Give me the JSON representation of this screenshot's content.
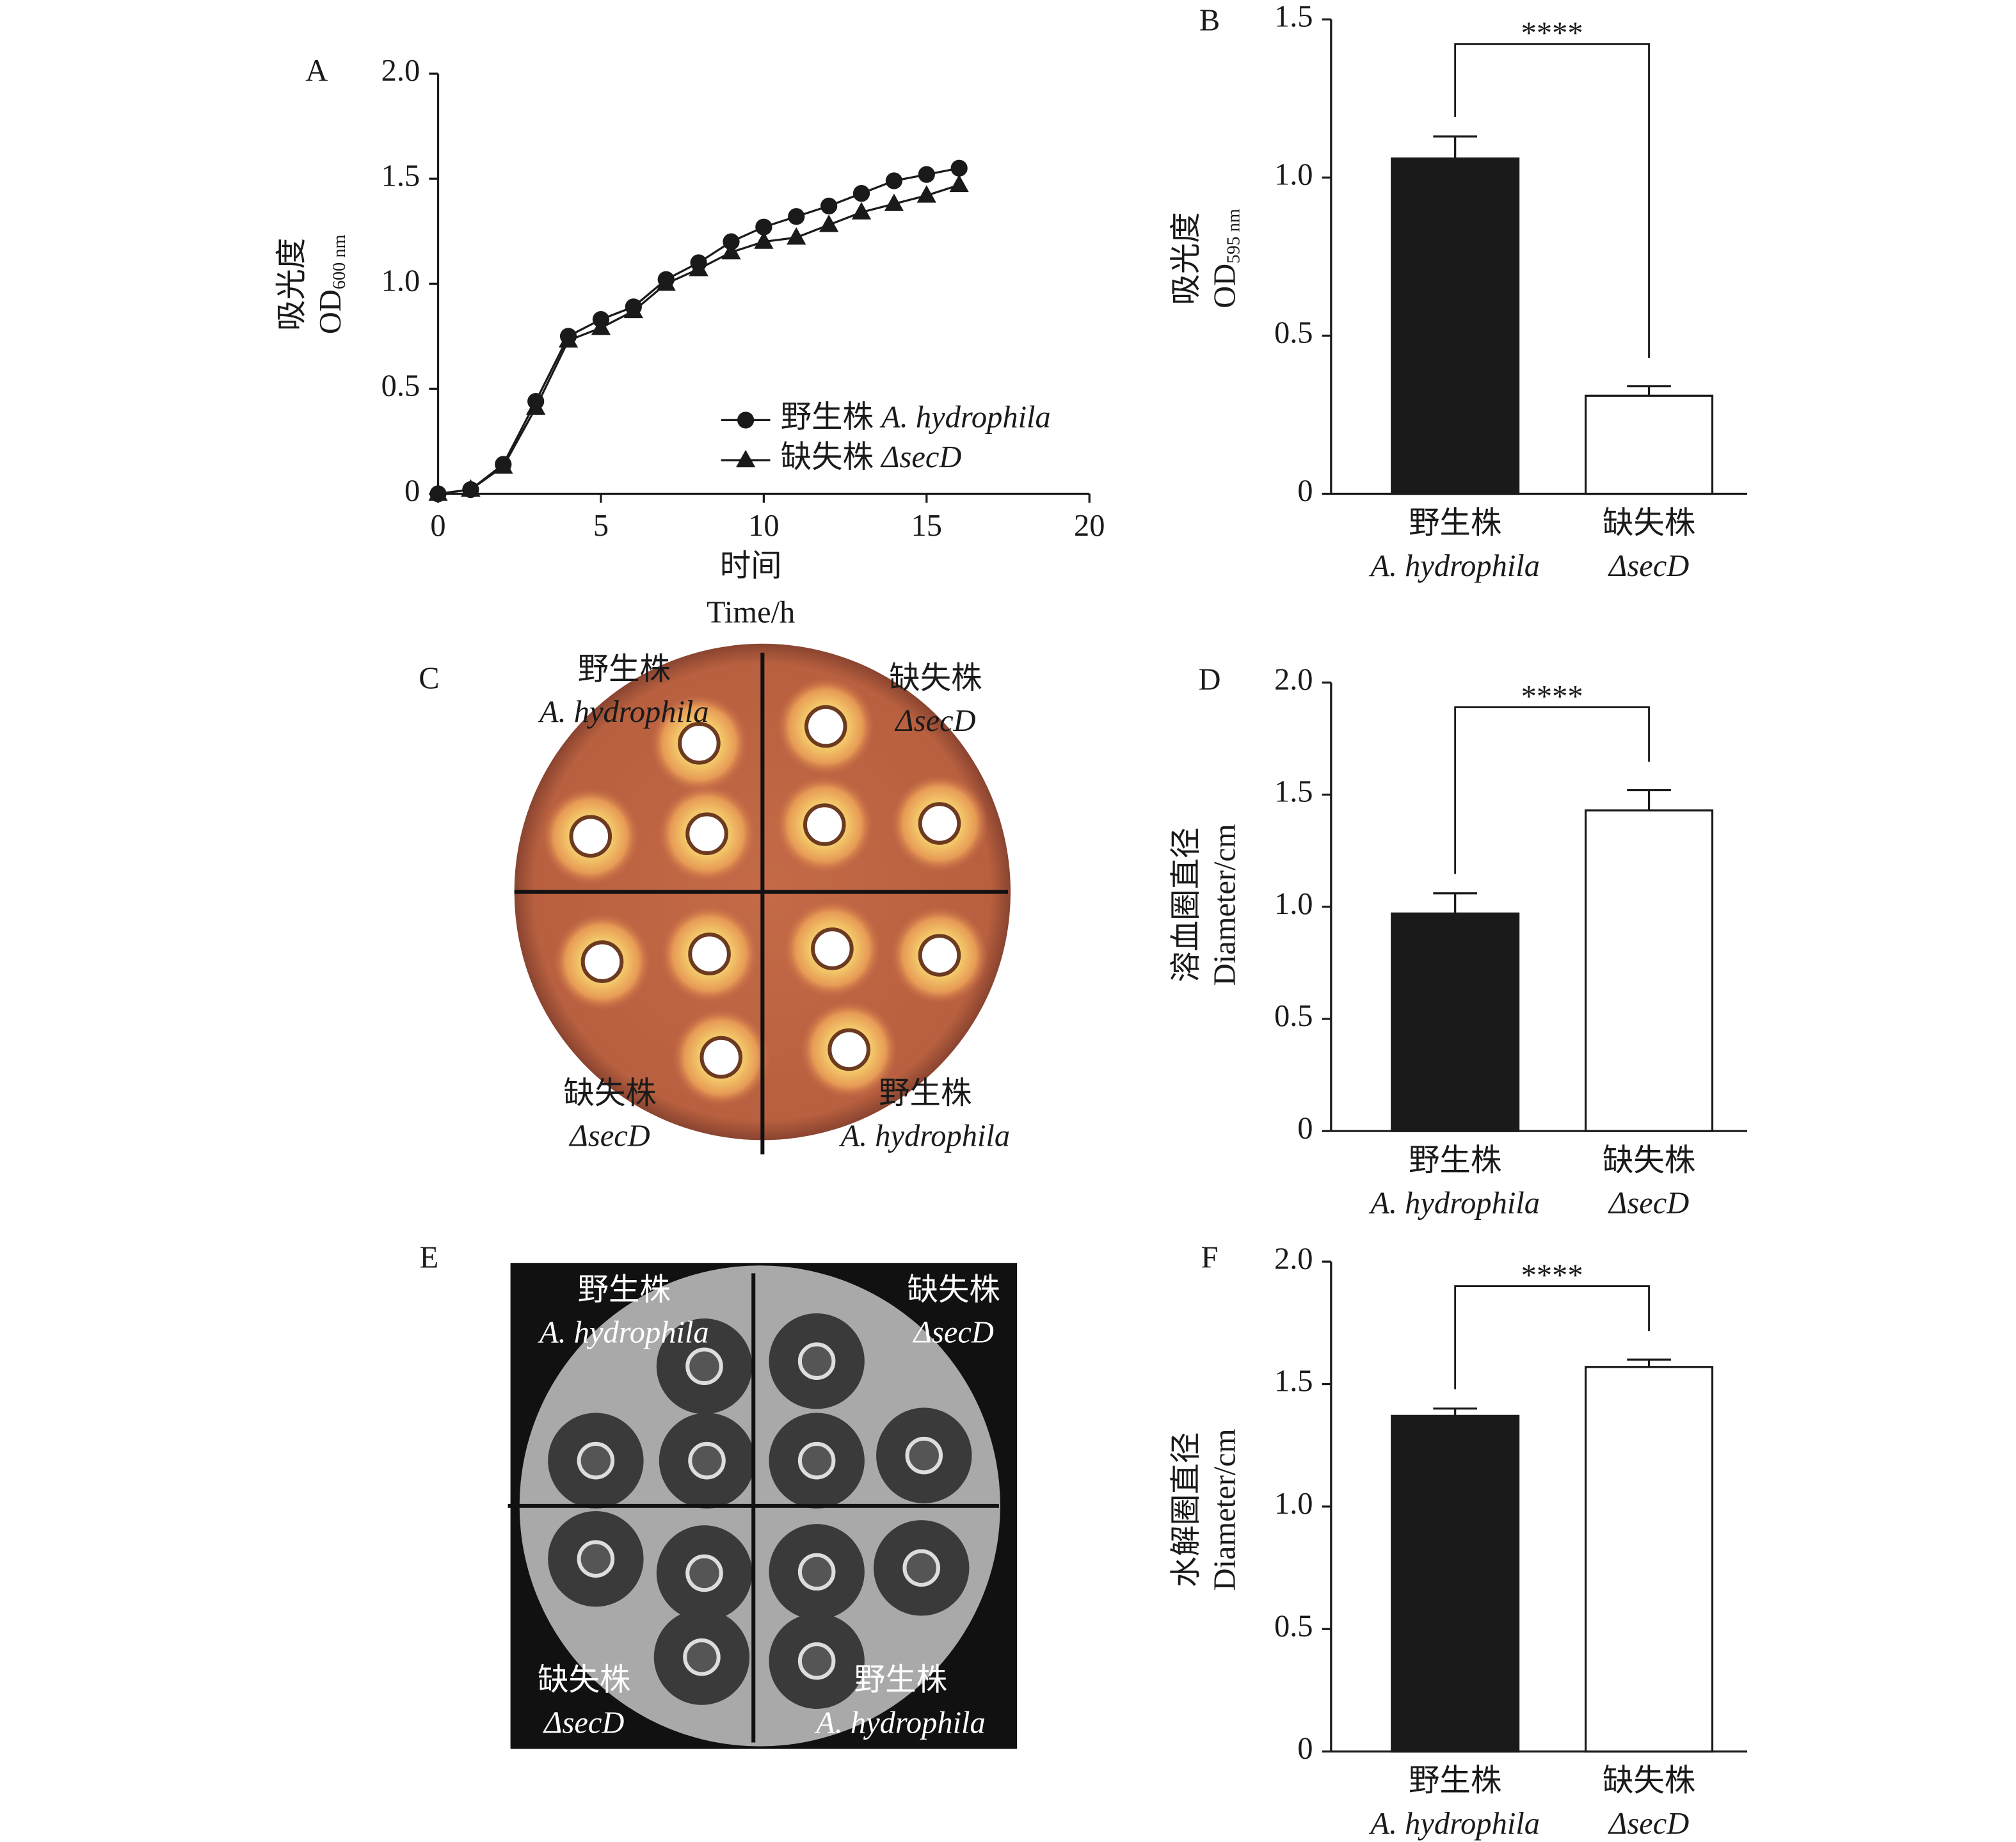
{
  "chart_data": [
    {
      "type": "line",
      "panel": "A",
      "xlabel": "时间",
      "xlabel2": "Time/h",
      "ylabel": "吸光度",
      "ylabel2": "OD",
      "ylabel2_sub": "600 nm",
      "xlim": [
        0,
        20
      ],
      "xticks": [
        0,
        5,
        10,
        15,
        20
      ],
      "ylim": [
        0,
        2
      ],
      "yticks": [
        0,
        0.5,
        {
          "value": 1,
          "label": "1.0"
        },
        1.5,
        {
          "value": 2,
          "label": "2.0"
        }
      ],
      "legend": "lower right",
      "x": [
        0,
        1,
        2,
        3,
        4,
        5,
        6,
        7,
        8,
        9,
        10,
        11,
        12,
        13,
        14,
        15,
        16
      ],
      "series": [
        {
          "name": "野生株 A. hydrophila",
          "marker": "circle",
          "color": "#1a1a1a",
          "values": [
            0,
            0.02,
            0.14,
            0.44,
            0.75,
            0.83,
            0.89,
            1.02,
            1.1,
            1.2,
            1.27,
            1.32,
            1.37,
            1.43,
            1.49,
            1.52,
            1.55
          ]
        },
        {
          "name": "缺失株 ΔsecD",
          "marker": "triangle",
          "color": "#1a1a1a",
          "values": [
            0,
            0.02,
            0.13,
            0.41,
            0.73,
            0.79,
            0.87,
            1.0,
            1.07,
            1.15,
            1.2,
            1.22,
            1.28,
            1.34,
            1.38,
            1.42,
            1.47
          ]
        }
      ]
    },
    {
      "type": "bar",
      "panel": "B",
      "ylabel": "吸光度",
      "ylabel2": "OD",
      "ylabel2_sub": "595 nm",
      "ylim": [
        0,
        1.5
      ],
      "yticks": [
        0,
        0.5,
        {
          "value": 1,
          "label": "1.0"
        },
        1.5
      ],
      "categories": [
        "野生株",
        "缺失株"
      ],
      "category_sublabels": [
        "A. hydrophila",
        "ΔsecD"
      ],
      "values": [
        1.06,
        0.31
      ],
      "errors": [
        0.07,
        0.03
      ],
      "colors": [
        "#1a1a1a",
        "#ffffff"
      ],
      "annotation": "****"
    },
    {
      "type": "bar",
      "panel": "D",
      "ylabel": "溶血圈直径",
      "ylabel2": "Diameter/cm",
      "ylim": [
        0,
        2
      ],
      "yticks": [
        0,
        0.5,
        {
          "value": 1,
          "label": "1.0"
        },
        1.5,
        {
          "value": 2,
          "label": "2.0"
        }
      ],
      "categories": [
        "野生株",
        "缺失株"
      ],
      "category_sublabels": [
        "A. hydrophila",
        "ΔsecD"
      ],
      "values": [
        0.97,
        1.43
      ],
      "errors": [
        0.09,
        0.09
      ],
      "colors": [
        "#1a1a1a",
        "#ffffff"
      ],
      "annotation": "****"
    },
    {
      "type": "bar",
      "panel": "F",
      "ylabel": "水解圈直径",
      "ylabel2": "Diameter/cm",
      "ylim": [
        0,
        2
      ],
      "yticks": [
        0,
        0.5,
        {
          "value": 1,
          "label": "1.0"
        },
        1.5,
        {
          "value": 2,
          "label": "2.0"
        }
      ],
      "categories": [
        "野生株",
        "缺失株"
      ],
      "category_sublabels": [
        "A. hydrophila",
        "ΔsecD"
      ],
      "values": [
        1.37,
        1.57
      ],
      "errors": [
        0.03,
        0.03
      ],
      "colors": [
        "#1a1a1a",
        "#ffffff"
      ],
      "annotation": "****"
    }
  ],
  "plates": [
    {
      "panel": "C",
      "quadrants": [
        [
          "野生株",
          "A. hydrophila"
        ],
        [
          "缺失株",
          "ΔsecD"
        ],
        [
          "缺失株",
          "ΔsecD"
        ],
        [
          "野生株",
          "A. hydrophila"
        ]
      ]
    },
    {
      "panel": "E",
      "quadrants": [
        [
          "野生株",
          "A. hydrophila"
        ],
        [
          "缺失株",
          "ΔsecD"
        ],
        [
          "缺失株",
          "ΔsecD"
        ],
        [
          "野生株",
          "A. hydrophila"
        ]
      ]
    }
  ]
}
